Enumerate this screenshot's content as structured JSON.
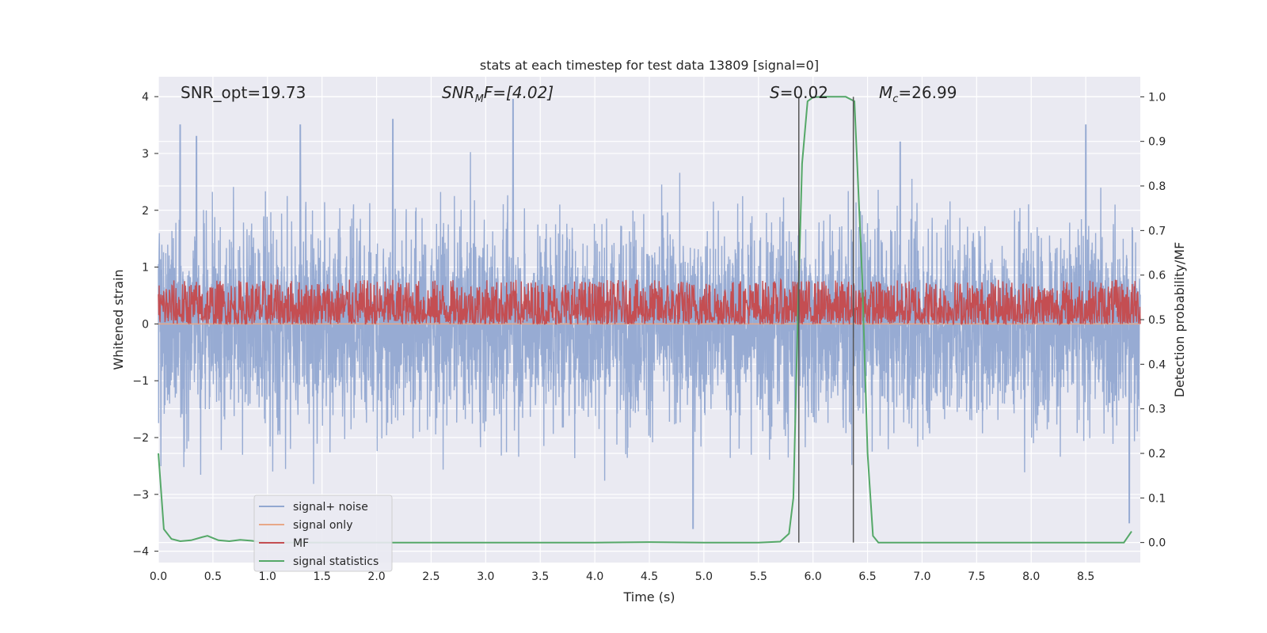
{
  "chart_data": {
    "type": "line",
    "title": "stats at each timestep for test data 13809 [signal=0]",
    "xlabel": "Time (s)",
    "ylabel": "Whitened strain",
    "y2label": "Detection probability/MF",
    "xlim": [
      0.0,
      9.0
    ],
    "ylim": [
      -4.2,
      4.35
    ],
    "y2lim": [
      -0.045,
      1.045
    ],
    "x_ticks": [
      "0.0",
      "0.5",
      "1.0",
      "1.5",
      "2.0",
      "2.5",
      "3.0",
      "3.5",
      "4.0",
      "4.5",
      "5.0",
      "5.5",
      "6.0",
      "6.5",
      "7.0",
      "7.5",
      "8.0",
      "8.5"
    ],
    "y_ticks": [
      "4",
      "3",
      "2",
      "1",
      "0",
      "−1",
      "−2",
      "−3",
      "−4"
    ],
    "y2_ticks": [
      "1.0",
      "0.9",
      "0.8",
      "0.7",
      "0.6",
      "0.5",
      "0.4",
      "0.3",
      "0.2",
      "0.1",
      "0.0"
    ],
    "grid": true,
    "legend_position": "lower-left",
    "annotations": {
      "snr_opt": "SNR_opt=19.73",
      "snr_mf_sym": "SNR",
      "snr_mf_sub": "M",
      "snr_mf_tail": "F=[4.02]",
      "s_sym": "S",
      "s_val": "=0.02",
      "mc_sym": "M",
      "mc_sub": "c",
      "mc_val": "=26.99"
    },
    "vlines": [
      5.87,
      6.37
    ],
    "series": [
      {
        "name": "signal+ noise",
        "color": "#92a8d1",
        "axis": "left",
        "kind": "noise",
        "envelope_mean": 0.0,
        "envelope_sd": 1.0,
        "peaks": [
          [
            0.2,
            3.5
          ],
          [
            0.35,
            3.3
          ],
          [
            1.3,
            3.5
          ],
          [
            2.15,
            3.6
          ],
          [
            3.25,
            3.95
          ],
          [
            4.9,
            -3.6
          ],
          [
            6.8,
            3.2
          ],
          [
            8.5,
            3.5
          ],
          [
            8.9,
            -3.5
          ]
        ]
      },
      {
        "name": "signal only",
        "color": "#e8a888",
        "axis": "left",
        "values_const": 0.0
      },
      {
        "name": "MF",
        "color": "#c44e52",
        "axis": "right",
        "kind": "noise",
        "baseline": 0.5,
        "range": [
          0.49,
          0.59
        ]
      },
      {
        "name": "signal statistics",
        "color": "#55a868",
        "axis": "right",
        "x": [
          0.0,
          0.05,
          0.12,
          0.2,
          0.3,
          0.4,
          0.45,
          0.55,
          0.65,
          0.75,
          0.85,
          1.0,
          2.0,
          3.0,
          4.0,
          4.5,
          5.0,
          5.5,
          5.7,
          5.78,
          5.82,
          5.86,
          5.9,
          5.95,
          6.0,
          6.1,
          6.2,
          6.3,
          6.38,
          6.45,
          6.5,
          6.55,
          6.6,
          7.0,
          8.0,
          8.85,
          8.92
        ],
        "values": [
          0.2,
          0.03,
          0.008,
          0.003,
          0.005,
          0.012,
          0.015,
          0.005,
          0.003,
          0.006,
          0.004,
          0.0,
          0.0,
          0.0,
          0.0,
          0.001,
          0.0,
          0.0,
          0.002,
          0.02,
          0.1,
          0.5,
          0.85,
          0.99,
          0.999,
          1.0,
          1.0,
          1.0,
          0.99,
          0.6,
          0.2,
          0.015,
          0.0,
          0.0,
          0.0,
          0.0,
          0.025
        ]
      }
    ]
  }
}
